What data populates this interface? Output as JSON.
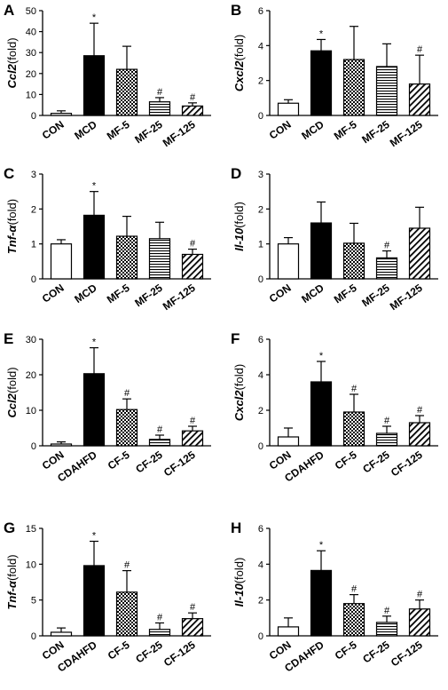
{
  "chart_data": [
    {
      "panel": "A",
      "type": "bar",
      "ylabel": "Ccl2",
      "ylabel_unit": "(fold)",
      "ylim": [
        0,
        50
      ],
      "yticks": [
        "0",
        "10",
        "20",
        "30",
        "40",
        "50"
      ],
      "categories": [
        "CON",
        "MCD",
        "MF-5",
        "MF-25",
        "MF-125"
      ],
      "values": [
        1,
        28.5,
        22,
        6.5,
        4.5
      ],
      "errors": [
        1.2,
        15.5,
        11,
        2,
        1.5
      ],
      "marks": [
        "",
        "*",
        "",
        "#",
        "#"
      ],
      "patterns": [
        "white",
        "black",
        "check",
        "hlines",
        "diag"
      ]
    },
    {
      "panel": "B",
      "type": "bar",
      "ylabel": "Cxcl2",
      "ylabel_unit": "(fold)",
      "ylim": [
        0,
        6
      ],
      "yticks": [
        "0",
        "2",
        "4",
        "6"
      ],
      "categories": [
        "CON",
        "MCD",
        "MF-5",
        "MF-25",
        "MF-125"
      ],
      "values": [
        0.7,
        3.7,
        3.2,
        2.8,
        1.8
      ],
      "errors": [
        0.2,
        0.65,
        1.9,
        1.3,
        1.65
      ],
      "marks": [
        "",
        "*",
        "",
        "",
        "#"
      ],
      "patterns": [
        "white",
        "black",
        "check",
        "hlines",
        "diag"
      ]
    },
    {
      "panel": "C",
      "type": "bar",
      "ylabel": "Tnf-α",
      "ylabel_unit": "(fold)",
      "ylim": [
        0,
        3
      ],
      "yticks": [
        "0",
        "1",
        "2",
        "3"
      ],
      "categories": [
        "CON",
        "MCD",
        "MF-5",
        "MF-25",
        "MF-125"
      ],
      "values": [
        1.0,
        1.82,
        1.22,
        1.15,
        0.7
      ],
      "errors": [
        0.12,
        0.68,
        0.57,
        0.47,
        0.15
      ],
      "marks": [
        "",
        "*",
        "",
        "",
        "#"
      ],
      "patterns": [
        "white",
        "black",
        "check",
        "hlines",
        "diag"
      ]
    },
    {
      "panel": "D",
      "type": "bar",
      "ylabel": "Il-10",
      "ylabel_unit": "(fold)",
      "ylim": [
        0,
        3
      ],
      "yticks": [
        "0",
        "1",
        "2",
        "3"
      ],
      "categories": [
        "CON",
        "MCD",
        "MF-5",
        "MF-25",
        "MF-125"
      ],
      "values": [
        1.0,
        1.6,
        1.02,
        0.6,
        1.45
      ],
      "errors": [
        0.18,
        0.6,
        0.57,
        0.2,
        0.6
      ],
      "marks": [
        "",
        "",
        "",
        "#",
        ""
      ],
      "patterns": [
        "white",
        "black",
        "check",
        "hlines",
        "diag"
      ]
    },
    {
      "panel": "E",
      "type": "bar",
      "ylabel": "Ccl2",
      "ylabel_unit": "(fold)",
      "ylim": [
        0,
        30
      ],
      "yticks": [
        "0",
        "10",
        "20",
        "30"
      ],
      "categories": [
        "CON",
        "CDAHFD",
        "CF-5",
        "CF-25",
        "CF-125"
      ],
      "values": [
        0.5,
        20.3,
        10.2,
        1.8,
        4.2
      ],
      "errors": [
        0.6,
        7.3,
        3,
        1.2,
        1.3
      ],
      "marks": [
        "",
        "*",
        "#",
        "#",
        "#"
      ],
      "patterns": [
        "white",
        "black",
        "check",
        "hlines",
        "diag"
      ]
    },
    {
      "panel": "F",
      "type": "bar",
      "ylabel": "Cxcl2",
      "ylabel_unit": "(fold)",
      "ylim": [
        0,
        6
      ],
      "yticks": [
        "0",
        "2",
        "4",
        "6"
      ],
      "categories": [
        "CON",
        "CDAHFD",
        "CF-5",
        "CF-25",
        "CF-125"
      ],
      "values": [
        0.5,
        3.6,
        1.9,
        0.7,
        1.3
      ],
      "errors": [
        0.5,
        1.15,
        1.0,
        0.4,
        0.4
      ],
      "marks": [
        "",
        "*",
        "#",
        "#",
        "#"
      ],
      "patterns": [
        "white",
        "black",
        "check",
        "hlines",
        "diag"
      ]
    },
    {
      "panel": "G",
      "type": "bar",
      "ylabel": "Tnf-α",
      "ylabel_unit": "(fold)",
      "ylim": [
        0,
        15
      ],
      "yticks": [
        "0",
        "5",
        "10",
        "15"
      ],
      "categories": [
        "CON",
        "CDAHFD",
        "CF-5",
        "CF-25",
        "CF-125"
      ],
      "values": [
        0.5,
        9.8,
        6.1,
        0.9,
        2.4
      ],
      "errors": [
        0.6,
        3.4,
        3,
        0.9,
        0.8
      ],
      "marks": [
        "",
        "*",
        "#",
        "#",
        "#"
      ],
      "patterns": [
        "white",
        "black",
        "check",
        "hlines",
        "diag"
      ]
    },
    {
      "panel": "H",
      "type": "bar",
      "ylabel": "Il-10",
      "ylabel_unit": "(fold)",
      "ylim": [
        0,
        6
      ],
      "yticks": [
        "0",
        "2",
        "4",
        "6"
      ],
      "categories": [
        "CON",
        "CDAHFD",
        "CF-5",
        "CF-25",
        "CF-125"
      ],
      "values": [
        0.5,
        3.65,
        1.8,
        0.75,
        1.5
      ],
      "errors": [
        0.5,
        1.1,
        0.5,
        0.35,
        0.5
      ],
      "marks": [
        "",
        "*",
        "#",
        "#",
        "#"
      ],
      "patterns": [
        "white",
        "black",
        "check",
        "hlines",
        "diag"
      ]
    }
  ]
}
